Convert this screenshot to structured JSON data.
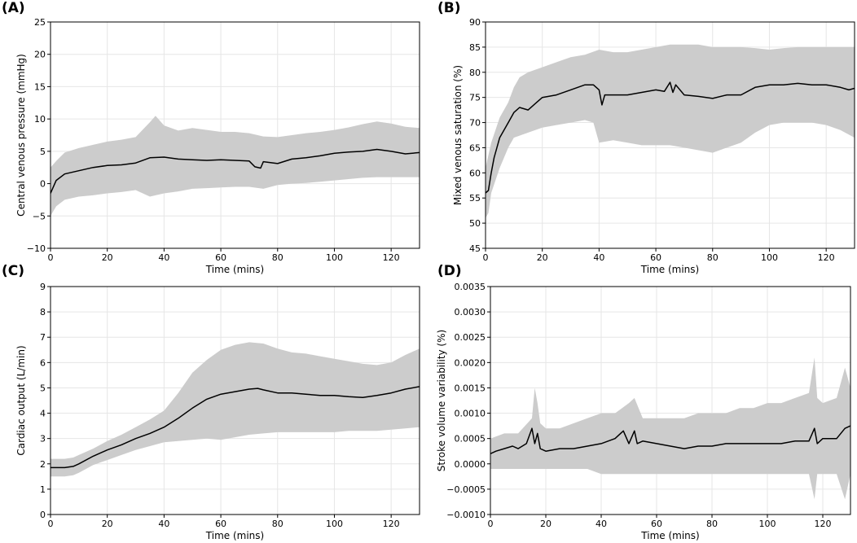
{
  "figure": {
    "band_color": "#cccccc",
    "line_color": "#000000",
    "grid_color": "#e6e6e6"
  },
  "chart_data": [
    {
      "id": "A",
      "panel_label": "(A)",
      "type": "line",
      "xlabel": "Time (mins)",
      "ylabel": "Central venous pressure (mmHg)",
      "xlim": [
        0,
        130
      ],
      "ylim": [
        -10,
        25
      ],
      "xticks": [
        0,
        20,
        40,
        60,
        80,
        100,
        120
      ],
      "yticks": [
        -10,
        -5,
        0,
        5,
        10,
        15,
        20,
        25
      ],
      "ytick_labels": [
        "−10",
        "−5",
        "0",
        "5",
        "10",
        "15",
        "20",
        "25"
      ],
      "grid": true,
      "series": [
        {
          "name": "mean",
          "x": [
            0,
            2,
            5,
            10,
            15,
            20,
            25,
            30,
            35,
            40,
            45,
            50,
            55,
            60,
            65,
            70,
            72,
            74,
            75,
            80,
            85,
            90,
            95,
            100,
            105,
            110,
            115,
            120,
            125,
            130
          ],
          "values": [
            -1.5,
            0.5,
            1.5,
            2.0,
            2.5,
            2.8,
            2.9,
            3.2,
            4.0,
            4.1,
            3.8,
            3.7,
            3.6,
            3.7,
            3.6,
            3.5,
            2.6,
            2.4,
            3.4,
            3.1,
            3.8,
            4.0,
            4.3,
            4.7,
            4.9,
            5.0,
            5.3,
            5.0,
            4.6,
            4.8
          ]
        },
        {
          "name": "upper",
          "x": [
            0,
            2,
            5,
            10,
            15,
            20,
            25,
            30,
            35,
            37,
            40,
            45,
            50,
            55,
            60,
            65,
            70,
            75,
            80,
            85,
            90,
            95,
            100,
            105,
            110,
            115,
            120,
            125,
            130
          ],
          "values": [
            2.5,
            3.5,
            4.8,
            5.5,
            6.0,
            6.5,
            6.8,
            7.2,
            9.5,
            10.5,
            9.0,
            8.2,
            8.6,
            8.3,
            8.0,
            8.0,
            7.8,
            7.3,
            7.2,
            7.5,
            7.8,
            8.0,
            8.3,
            8.7,
            9.2,
            9.6,
            9.3,
            8.8,
            8.6
          ]
        },
        {
          "name": "lower",
          "x": [
            0,
            2,
            5,
            10,
            15,
            20,
            25,
            30,
            35,
            40,
            45,
            50,
            55,
            60,
            65,
            70,
            75,
            80,
            85,
            90,
            95,
            100,
            105,
            110,
            115,
            120,
            125,
            130
          ],
          "values": [
            -5.0,
            -3.5,
            -2.5,
            -2.0,
            -1.8,
            -1.5,
            -1.3,
            -1.0,
            -2.0,
            -1.5,
            -1.2,
            -0.8,
            -0.7,
            -0.6,
            -0.5,
            -0.5,
            -0.8,
            -0.2,
            0.0,
            0.1,
            0.3,
            0.5,
            0.7,
            0.9,
            1.0,
            1.0,
            1.0,
            1.0
          ]
        }
      ]
    },
    {
      "id": "B",
      "panel_label": "(B)",
      "type": "line",
      "xlabel": "Time (mins)",
      "ylabel": "Mixed venous saturation (%)",
      "xlim": [
        0,
        130
      ],
      "ylim": [
        45,
        90
      ],
      "xticks": [
        0,
        20,
        40,
        60,
        80,
        100,
        120
      ],
      "yticks": [
        45,
        50,
        55,
        60,
        65,
        70,
        75,
        80,
        85,
        90
      ],
      "ytick_labels": [
        "45",
        "50",
        "55",
        "60",
        "65",
        "70",
        "75",
        "80",
        "85",
        "90"
      ],
      "grid": true,
      "series": [
        {
          "name": "mean",
          "x": [
            0,
            1,
            2,
            3,
            5,
            8,
            10,
            12,
            15,
            18,
            20,
            25,
            30,
            35,
            38,
            40,
            41,
            42,
            45,
            50,
            55,
            60,
            63,
            65,
            66,
            67,
            70,
            75,
            80,
            85,
            90,
            95,
            100,
            105,
            110,
            115,
            120,
            125,
            128,
            130
          ],
          "values": [
            56,
            56.5,
            60,
            63,
            67,
            70,
            72,
            73,
            72.5,
            74,
            75,
            75.5,
            76.5,
            77.5,
            77.5,
            76.5,
            73.5,
            75.5,
            75.5,
            75.5,
            76,
            76.5,
            76.2,
            78,
            76,
            77.5,
            75.5,
            75.2,
            74.8,
            75.5,
            75.5,
            77,
            77.5,
            77.5,
            77.8,
            77.5,
            77.5,
            77,
            76.5,
            76.8
          ]
        },
        {
          "name": "upper",
          "x": [
            0,
            2,
            5,
            8,
            10,
            12,
            15,
            20,
            25,
            30,
            35,
            40,
            45,
            50,
            55,
            60,
            65,
            70,
            75,
            80,
            85,
            90,
            95,
            100,
            105,
            110,
            115,
            120,
            125,
            130
          ],
          "values": [
            61,
            66,
            71,
            74,
            77,
            79,
            80,
            81,
            82,
            83,
            83.5,
            84.5,
            84,
            84,
            84.5,
            85,
            85.5,
            85.5,
            85.5,
            85,
            85,
            85,
            84.8,
            84.5,
            84.8,
            85,
            85,
            85,
            85,
            85
          ]
        },
        {
          "name": "lower",
          "x": [
            0,
            1,
            2,
            5,
            8,
            10,
            15,
            20,
            25,
            30,
            35,
            38,
            40,
            45,
            50,
            55,
            60,
            65,
            70,
            75,
            80,
            85,
            90,
            95,
            100,
            105,
            110,
            115,
            120,
            125,
            130
          ],
          "values": [
            51,
            52,
            56,
            61,
            65,
            67,
            68,
            69,
            69.5,
            70,
            70.5,
            70,
            66,
            66.5,
            66,
            65.5,
            65.5,
            65.5,
            65,
            64.5,
            64,
            65,
            66,
            68,
            69.5,
            70,
            70,
            70,
            69.5,
            68.5,
            67
          ]
        }
      ]
    },
    {
      "id": "C",
      "panel_label": "(C)",
      "type": "line",
      "xlabel": "Time (mins)",
      "ylabel": "Cardiac output (L/min)",
      "xlim": [
        0,
        130
      ],
      "ylim": [
        0,
        9
      ],
      "xticks": [
        0,
        20,
        40,
        60,
        80,
        100,
        120
      ],
      "yticks": [
        0,
        1,
        2,
        3,
        4,
        5,
        6,
        7,
        8,
        9
      ],
      "ytick_labels": [
        "0",
        "1",
        "2",
        "3",
        "4",
        "5",
        "6",
        "7",
        "8",
        "9"
      ],
      "grid": true,
      "series": [
        {
          "name": "mean",
          "x": [
            0,
            5,
            8,
            10,
            15,
            20,
            25,
            30,
            35,
            40,
            45,
            50,
            55,
            60,
            65,
            70,
            73,
            75,
            80,
            85,
            90,
            95,
            100,
            105,
            110,
            115,
            120,
            125,
            130
          ],
          "values": [
            1.85,
            1.85,
            1.9,
            2.0,
            2.3,
            2.55,
            2.75,
            3.0,
            3.2,
            3.45,
            3.8,
            4.2,
            4.55,
            4.75,
            4.85,
            4.95,
            4.98,
            4.92,
            4.8,
            4.8,
            4.75,
            4.7,
            4.7,
            4.65,
            4.62,
            4.7,
            4.8,
            4.95,
            5.05
          ]
        },
        {
          "name": "upper",
          "x": [
            0,
            5,
            8,
            10,
            15,
            20,
            25,
            30,
            35,
            40,
            45,
            50,
            55,
            60,
            65,
            70,
            75,
            80,
            85,
            90,
            95,
            100,
            105,
            110,
            115,
            120,
            125,
            130
          ],
          "values": [
            2.2,
            2.2,
            2.25,
            2.35,
            2.6,
            2.9,
            3.15,
            3.45,
            3.75,
            4.1,
            4.8,
            5.6,
            6.1,
            6.5,
            6.7,
            6.8,
            6.75,
            6.55,
            6.4,
            6.35,
            6.25,
            6.15,
            6.05,
            5.95,
            5.9,
            6.0,
            6.3,
            6.55
          ]
        },
        {
          "name": "lower",
          "x": [
            0,
            5,
            8,
            10,
            15,
            20,
            25,
            30,
            35,
            40,
            45,
            50,
            55,
            60,
            65,
            70,
            75,
            80,
            85,
            90,
            95,
            100,
            105,
            110,
            115,
            120,
            125,
            130
          ],
          "values": [
            1.5,
            1.5,
            1.55,
            1.65,
            1.95,
            2.15,
            2.35,
            2.55,
            2.7,
            2.85,
            2.9,
            2.95,
            3.0,
            2.95,
            3.05,
            3.15,
            3.2,
            3.25,
            3.25,
            3.25,
            3.25,
            3.25,
            3.3,
            3.3,
            3.3,
            3.35,
            3.4,
            3.45
          ]
        }
      ]
    },
    {
      "id": "D",
      "panel_label": "(D)",
      "type": "line",
      "xlabel": "Time (mins)",
      "ylabel": "Stroke volume variability (%)",
      "xlim": [
        0,
        130
      ],
      "ylim": [
        -0.001,
        0.0035
      ],
      "xticks": [
        0,
        20,
        40,
        60,
        80,
        100,
        120
      ],
      "yticks": [
        -0.001,
        -0.0005,
        0,
        0.0005,
        0.001,
        0.0015,
        0.002,
        0.0025,
        0.003,
        0.0035
      ],
      "ytick_labels": [
        "−0.0010",
        "−0.0005",
        "0.0000",
        "0.0005",
        "0.0010",
        "0.0015",
        "0.0020",
        "0.0025",
        "0.0030",
        "0.0035"
      ],
      "grid": true,
      "series": [
        {
          "name": "mean",
          "x": [
            0,
            2,
            5,
            8,
            10,
            13,
            15,
            16,
            17,
            18,
            20,
            25,
            30,
            35,
            40,
            45,
            48,
            50,
            52,
            53,
            55,
            60,
            65,
            70,
            75,
            80,
            85,
            90,
            95,
            100,
            105,
            110,
            115,
            117,
            118,
            120,
            125,
            128,
            130
          ],
          "values": [
            0.0002,
            0.00025,
            0.0003,
            0.00035,
            0.0003,
            0.0004,
            0.0007,
            0.0004,
            0.0006,
            0.0003,
            0.00025,
            0.0003,
            0.0003,
            0.00035,
            0.0004,
            0.0005,
            0.00065,
            0.0004,
            0.00065,
            0.0004,
            0.00045,
            0.0004,
            0.00035,
            0.0003,
            0.00035,
            0.00035,
            0.0004,
            0.0004,
            0.0004,
            0.0004,
            0.0004,
            0.00045,
            0.00045,
            0.0007,
            0.0004,
            0.0005,
            0.0005,
            0.0007,
            0.00075
          ]
        },
        {
          "name": "upper",
          "x": [
            0,
            5,
            10,
            15,
            16,
            17,
            18,
            20,
            25,
            30,
            35,
            40,
            45,
            50,
            52,
            55,
            60,
            65,
            70,
            75,
            80,
            85,
            90,
            95,
            100,
            105,
            110,
            115,
            117,
            118,
            120,
            125,
            128,
            130
          ],
          "values": [
            0.0005,
            0.0006,
            0.0006,
            0.0009,
            0.0015,
            0.0012,
            0.0008,
            0.0007,
            0.0007,
            0.0008,
            0.0009,
            0.001,
            0.001,
            0.0012,
            0.0013,
            0.0009,
            0.0009,
            0.0009,
            0.0009,
            0.001,
            0.001,
            0.001,
            0.0011,
            0.0011,
            0.0012,
            0.0012,
            0.0013,
            0.0014,
            0.0021,
            0.0013,
            0.0012,
            0.0013,
            0.0019,
            0.0015
          ]
        },
        {
          "name": "lower",
          "x": [
            0,
            5,
            10,
            15,
            20,
            25,
            30,
            35,
            40,
            45,
            50,
            55,
            60,
            65,
            70,
            75,
            80,
            85,
            90,
            95,
            100,
            105,
            110,
            115,
            117,
            118,
            120,
            125,
            128,
            130
          ],
          "values": [
            -0.0001,
            -0.0001,
            -0.0001,
            -0.0001,
            -0.0001,
            -0.0001,
            -0.0001,
            -0.0001,
            -0.0002,
            -0.0002,
            -0.0002,
            -0.0002,
            -0.0002,
            -0.0002,
            -0.0002,
            -0.0002,
            -0.0002,
            -0.0002,
            -0.0002,
            -0.0002,
            -0.0002,
            -0.0002,
            -0.0002,
            -0.0002,
            -0.0007,
            -0.0002,
            -0.0002,
            -0.0002,
            -0.0007,
            -0.0002
          ]
        }
      ]
    }
  ]
}
